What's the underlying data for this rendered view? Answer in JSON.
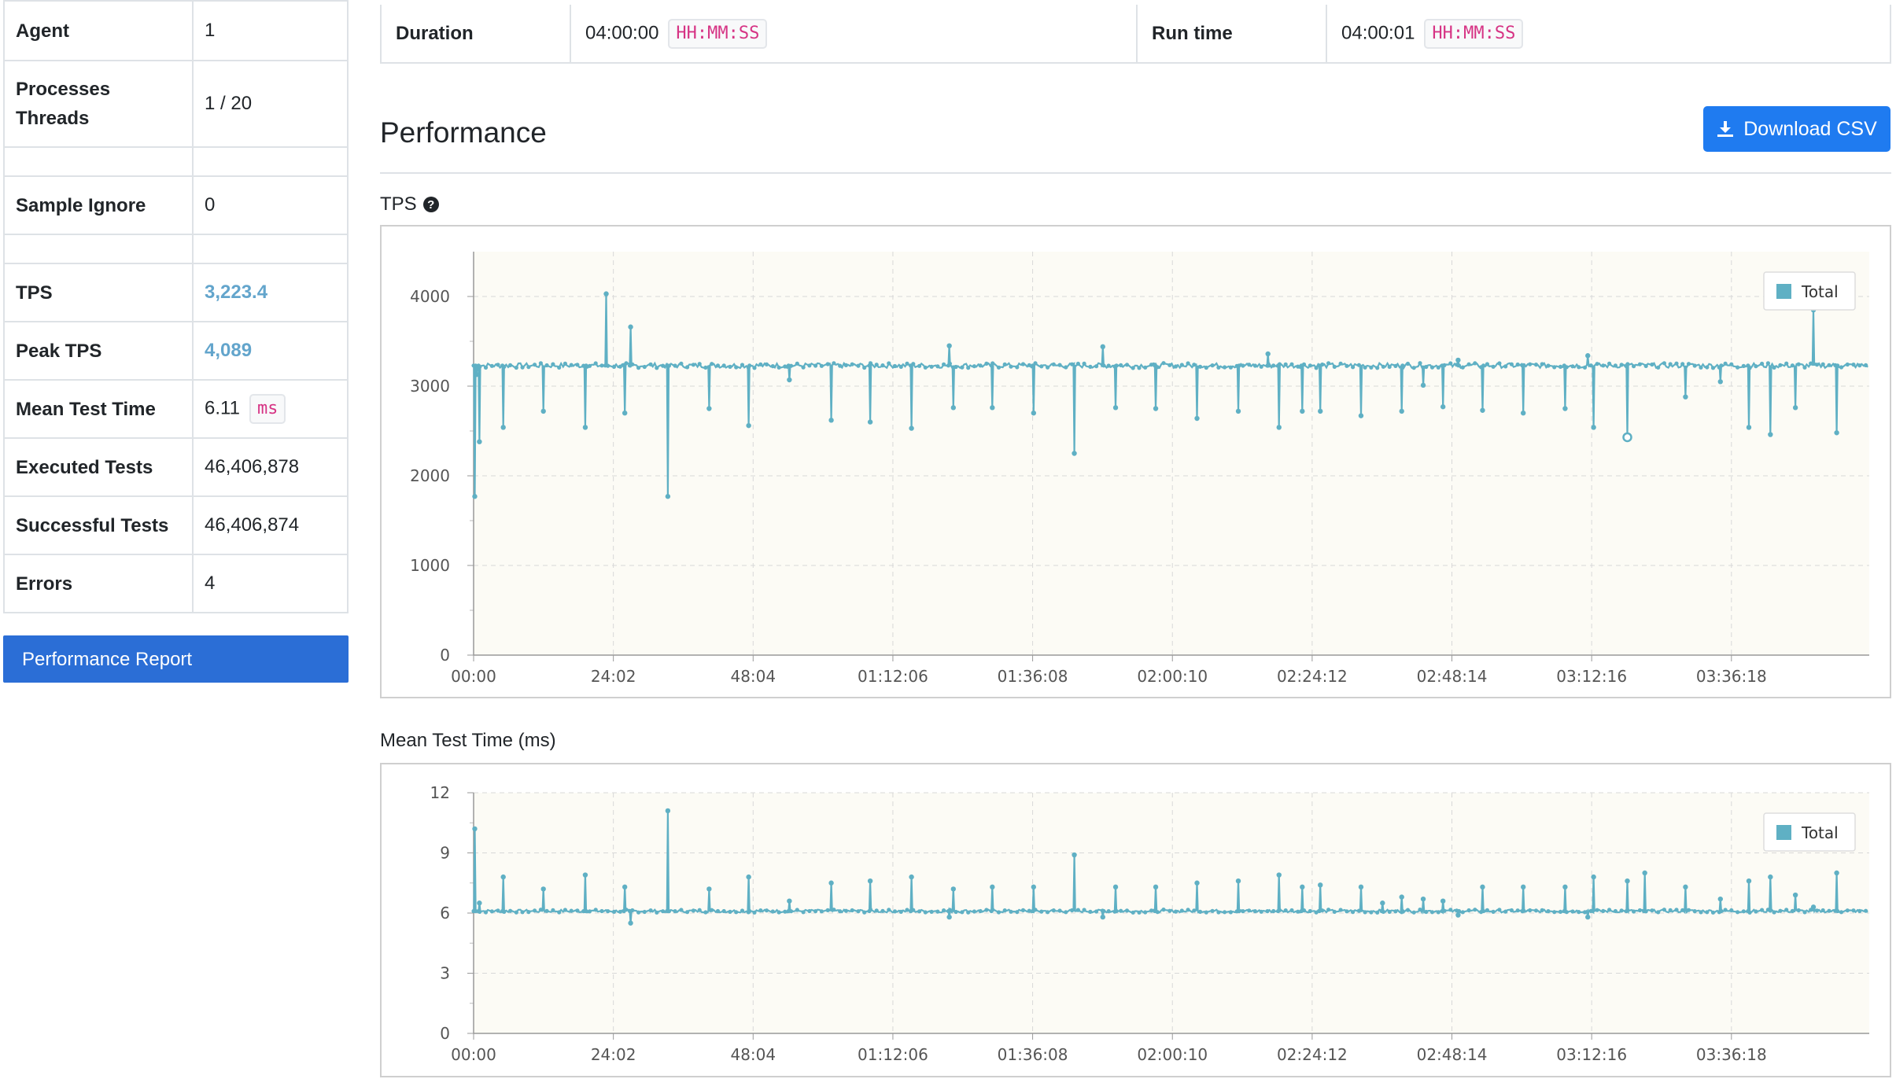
{
  "summary": {
    "rows": [
      {
        "label": "Agent",
        "value": "1"
      },
      {
        "label": "Processes\nThreads",
        "value": "1 / 20"
      },
      {
        "label": "",
        "value": ""
      },
      {
        "label": "Sample Ignore",
        "value": "0"
      },
      {
        "label": "",
        "value": ""
      },
      {
        "label": "TPS",
        "value": "3,223.4"
      },
      {
        "label": "Peak TPS",
        "value": "4,089"
      },
      {
        "label": "Mean Test Time",
        "value": "6.11",
        "unit": "ms"
      },
      {
        "label": "Executed Tests",
        "value": "46,406,878"
      },
      {
        "label": "Successful Tests",
        "value": "46,406,874"
      },
      {
        "label": "Errors",
        "value": "4"
      }
    ]
  },
  "performance_report_label": "Performance Report",
  "run_info": {
    "duration_label": "Duration",
    "duration_value": "04:00:00",
    "duration_format": "HH:MM:SS",
    "runtime_label": "Run time",
    "runtime_value": "04:00:01",
    "runtime_format": "HH:MM:SS"
  },
  "performance_title": "Performance",
  "download_label": "Download CSV",
  "colors": {
    "accent": "#1f7bf0",
    "series": "#5fb0c4",
    "plot_bg": "#fcfbf5",
    "link": "#63a5cc"
  },
  "chart_data": [
    {
      "id": "tps",
      "type": "line",
      "title": "TPS",
      "x_ticks": [
        "00:00",
        "24:02",
        "48:04",
        "01:12:06",
        "01:36:08",
        "02:00:10",
        "02:24:12",
        "02:48:14",
        "03:12:16",
        "03:36:18"
      ],
      "x_range_minutes": [
        0,
        240
      ],
      "ylim": [
        0,
        4500
      ],
      "y_ticks": [
        0,
        1000,
        2000,
        3000,
        4000
      ],
      "legend": "Total",
      "legend_position": "top-right",
      "grid": true,
      "baseline": 3230,
      "spikes": [
        {
          "t": 0.2,
          "v": 1770
        },
        {
          "t": 0.5,
          "v": 3130
        },
        {
          "t": 1.0,
          "v": 2380
        },
        {
          "t": 5.1,
          "v": 2540
        },
        {
          "t": 12.0,
          "v": 2720
        },
        {
          "t": 19.2,
          "v": 2540
        },
        {
          "t": 22.8,
          "v": 4030
        },
        {
          "t": 26.0,
          "v": 2700
        },
        {
          "t": 27.0,
          "v": 3660
        },
        {
          "t": 33.4,
          "v": 1770
        },
        {
          "t": 40.5,
          "v": 2750
        },
        {
          "t": 47.3,
          "v": 2560
        },
        {
          "t": 54.3,
          "v": 3070
        },
        {
          "t": 61.5,
          "v": 2620
        },
        {
          "t": 68.2,
          "v": 2600
        },
        {
          "t": 75.3,
          "v": 2530
        },
        {
          "t": 81.8,
          "v": 3450
        },
        {
          "t": 82.5,
          "v": 2760
        },
        {
          "t": 89.2,
          "v": 2760
        },
        {
          "t": 96.3,
          "v": 2700
        },
        {
          "t": 103.3,
          "v": 2250
        },
        {
          "t": 108.2,
          "v": 3440
        },
        {
          "t": 110.4,
          "v": 2760
        },
        {
          "t": 117.3,
          "v": 2750
        },
        {
          "t": 124.4,
          "v": 2640
        },
        {
          "t": 131.5,
          "v": 2720
        },
        {
          "t": 136.6,
          "v": 3360
        },
        {
          "t": 138.5,
          "v": 2540
        },
        {
          "t": 142.5,
          "v": 2720
        },
        {
          "t": 145.6,
          "v": 2720
        },
        {
          "t": 152.6,
          "v": 2670
        },
        {
          "t": 159.6,
          "v": 2720
        },
        {
          "t": 163.3,
          "v": 3010
        },
        {
          "t": 166.7,
          "v": 2770
        },
        {
          "t": 169.3,
          "v": 3290
        },
        {
          "t": 173.5,
          "v": 2730
        },
        {
          "t": 180.5,
          "v": 2700
        },
        {
          "t": 187.7,
          "v": 2750
        },
        {
          "t": 191.6,
          "v": 3340
        },
        {
          "t": 192.6,
          "v": 2540
        },
        {
          "t": 198.4,
          "v": 2430
        },
        {
          "t": 208.4,
          "v": 2880
        },
        {
          "t": 214.4,
          "v": 3050
        },
        {
          "t": 219.3,
          "v": 2540
        },
        {
          "t": 223.0,
          "v": 2460
        },
        {
          "t": 227.3,
          "v": 2760
        },
        {
          "t": 230.4,
          "v": 3850
        },
        {
          "t": 234.4,
          "v": 2480
        }
      ],
      "marker": {
        "t": 198.4,
        "v": 2430
      }
    },
    {
      "id": "mtt",
      "type": "line",
      "title": "Mean Test Time (ms)",
      "x_ticks": [
        "00:00",
        "24:02",
        "48:04",
        "01:12:06",
        "01:36:08",
        "02:00:10",
        "02:24:12",
        "02:48:14",
        "03:12:16",
        "03:36:18"
      ],
      "x_range_minutes": [
        0,
        240
      ],
      "ylim": [
        0,
        12
      ],
      "y_ticks": [
        0,
        3,
        6,
        9,
        12
      ],
      "legend": "Total",
      "legend_position": "top-right",
      "grid": true,
      "baseline": 6.1,
      "spikes": [
        {
          "t": 0.2,
          "v": 10.2
        },
        {
          "t": 1.0,
          "v": 6.5
        },
        {
          "t": 5.1,
          "v": 7.8
        },
        {
          "t": 12.0,
          "v": 7.2
        },
        {
          "t": 19.2,
          "v": 7.9
        },
        {
          "t": 26.0,
          "v": 7.3
        },
        {
          "t": 27.0,
          "v": 5.5
        },
        {
          "t": 33.4,
          "v": 11.1
        },
        {
          "t": 40.5,
          "v": 7.2
        },
        {
          "t": 47.3,
          "v": 7.8
        },
        {
          "t": 54.3,
          "v": 6.6
        },
        {
          "t": 61.5,
          "v": 7.5
        },
        {
          "t": 68.2,
          "v": 7.6
        },
        {
          "t": 75.3,
          "v": 7.8
        },
        {
          "t": 81.8,
          "v": 5.8
        },
        {
          "t": 82.5,
          "v": 7.2
        },
        {
          "t": 89.2,
          "v": 7.3
        },
        {
          "t": 96.3,
          "v": 7.3
        },
        {
          "t": 103.3,
          "v": 8.9
        },
        {
          "t": 108.2,
          "v": 5.8
        },
        {
          "t": 110.4,
          "v": 7.3
        },
        {
          "t": 117.3,
          "v": 7.3
        },
        {
          "t": 124.4,
          "v": 7.5
        },
        {
          "t": 131.5,
          "v": 7.6
        },
        {
          "t": 138.5,
          "v": 7.9
        },
        {
          "t": 142.5,
          "v": 7.3
        },
        {
          "t": 145.6,
          "v": 7.4
        },
        {
          "t": 152.6,
          "v": 7.3
        },
        {
          "t": 156.3,
          "v": 6.5
        },
        {
          "t": 159.6,
          "v": 6.8
        },
        {
          "t": 163.3,
          "v": 6.7
        },
        {
          "t": 166.7,
          "v": 6.6
        },
        {
          "t": 169.3,
          "v": 5.9
        },
        {
          "t": 173.5,
          "v": 7.3
        },
        {
          "t": 180.5,
          "v": 7.3
        },
        {
          "t": 187.7,
          "v": 7.3
        },
        {
          "t": 191.6,
          "v": 5.8
        },
        {
          "t": 192.6,
          "v": 7.8
        },
        {
          "t": 198.4,
          "v": 7.6
        },
        {
          "t": 201.4,
          "v": 8.0
        },
        {
          "t": 208.4,
          "v": 7.3
        },
        {
          "t": 214.4,
          "v": 6.7
        },
        {
          "t": 219.3,
          "v": 7.6
        },
        {
          "t": 223.0,
          "v": 7.8
        },
        {
          "t": 227.3,
          "v": 6.9
        },
        {
          "t": 230.4,
          "v": 6.3
        },
        {
          "t": 234.4,
          "v": 8.0
        }
      ]
    }
  ]
}
